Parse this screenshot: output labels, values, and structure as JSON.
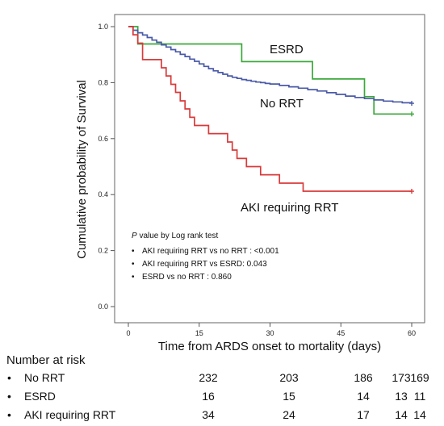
{
  "chart_data": {
    "type": "line",
    "step": true,
    "xlabel": "Time from ARDS onset to mortality (days)",
    "ylabel": "Cumulative probability of Survival",
    "xlim": [
      0,
      60
    ],
    "ylim": [
      0,
      1.0
    ],
    "x_ticks": [
      "0",
      "15",
      "30",
      "45",
      "60"
    ],
    "y_ticks": [
      "0.0",
      "0.2",
      "0.4",
      "0.6",
      "0.8",
      "1.0"
    ],
    "grid": false,
    "series": [
      {
        "name": "ESRD",
        "color": "#3aa83a",
        "censor_at": 60,
        "x": [
          0,
          2,
          3,
          24,
          39,
          50,
          52,
          60
        ],
        "y": [
          1.0,
          0.938,
          0.938,
          0.875,
          0.813,
          0.75,
          0.688,
          0.688
        ]
      },
      {
        "name": "No RRT",
        "color": "#4a5aa8",
        "censor_at": 60,
        "x": [
          0,
          1,
          2,
          3,
          4,
          5,
          6,
          7,
          8,
          9,
          10,
          11,
          12,
          13,
          14,
          15,
          16,
          17,
          18,
          19,
          20,
          21,
          22,
          23,
          24,
          25,
          26,
          27,
          28,
          29,
          30,
          32,
          34,
          36,
          38,
          40,
          42,
          44,
          46,
          48,
          50,
          52,
          54,
          56,
          58,
          60
        ],
        "y": [
          1.0,
          0.987,
          0.978,
          0.97,
          0.961,
          0.952,
          0.944,
          0.935,
          0.927,
          0.918,
          0.91,
          0.901,
          0.893,
          0.884,
          0.876,
          0.867,
          0.858,
          0.85,
          0.842,
          0.836,
          0.83,
          0.824,
          0.819,
          0.815,
          0.811,
          0.808,
          0.805,
          0.802,
          0.8,
          0.797,
          0.795,
          0.79,
          0.785,
          0.78,
          0.775,
          0.77,
          0.764,
          0.758,
          0.752,
          0.747,
          0.743,
          0.738,
          0.734,
          0.731,
          0.728,
          0.726
        ]
      },
      {
        "name": "AKI requiring RRT",
        "color": "#d93a3a",
        "censor_at": 60,
        "x": [
          0,
          1,
          2,
          3,
          7,
          8,
          9,
          10,
          11,
          12,
          13,
          14,
          15,
          17,
          19,
          21,
          22,
          23,
          25,
          27,
          28,
          30,
          32,
          35,
          37,
          38,
          60
        ],
        "y": [
          1.0,
          0.971,
          0.941,
          0.882,
          0.853,
          0.824,
          0.794,
          0.765,
          0.735,
          0.706,
          0.676,
          0.647,
          0.647,
          0.618,
          0.618,
          0.588,
          0.559,
          0.529,
          0.5,
          0.5,
          0.471,
          0.471,
          0.441,
          0.441,
          0.412,
          0.412,
          0.412
        ]
      }
    ],
    "series_labels": [
      "ESRD",
      "No RRT",
      "AKI requiring RRT"
    ],
    "annotation": {
      "title_italic": "P",
      "title_rest": " value by Log rank test",
      "lines": [
        "AKI requiring RRT vs no RRT : <0.001",
        "AKI requiring RRT vs ESRD: 0.043",
        "ESRD vs no RRT : 0.860"
      ],
      "bullet": "•"
    }
  },
  "risk_table": {
    "title": "Number at risk",
    "bullet": "•",
    "rows": [
      {
        "label": "No RRT",
        "values": [
          "232",
          "203",
          "186",
          "173",
          "169"
        ]
      },
      {
        "label": "ESRD",
        "values": [
          "16",
          "15",
          "14",
          "13",
          "11"
        ]
      },
      {
        "label": "AKI requiring RRT",
        "values": [
          "34",
          "24",
          "17",
          "14",
          "14"
        ]
      }
    ]
  }
}
